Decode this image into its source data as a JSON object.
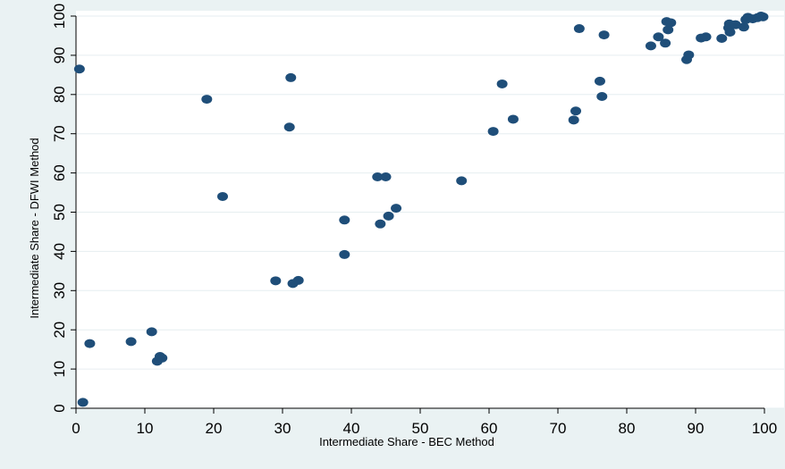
{
  "chart_data": {
    "type": "scatter",
    "title": "",
    "xlabel": "Intermediate Share - BEC Method",
    "ylabel": "Intermediate Share - DFWI Method",
    "xlim": [
      0,
      100
    ],
    "ylim": [
      0,
      100
    ],
    "xticks": [
      0,
      10,
      20,
      30,
      40,
      50,
      60,
      70,
      80,
      90,
      100
    ],
    "yticks": [
      0,
      10,
      20,
      30,
      40,
      50,
      60,
      70,
      80,
      90,
      100
    ],
    "grid": "horizontal",
    "legend": "none",
    "colors": {
      "marker": "#1f4e79",
      "grid": "#e6eef0",
      "plot_bg": "#ffffff",
      "page_bg": "#eaf2f3"
    },
    "points": [
      {
        "x": 0.5,
        "y": 86.5
      },
      {
        "x": 1.0,
        "y": 1.5
      },
      {
        "x": 2.0,
        "y": 16.5
      },
      {
        "x": 8.0,
        "y": 17.0
      },
      {
        "x": 11.0,
        "y": 19.5
      },
      {
        "x": 11.8,
        "y": 12.0
      },
      {
        "x": 12.2,
        "y": 13.2
      },
      {
        "x": 12.5,
        "y": 12.8
      },
      {
        "x": 19.0,
        "y": 78.8
      },
      {
        "x": 21.3,
        "y": 54.0
      },
      {
        "x": 29.0,
        "y": 32.5
      },
      {
        "x": 31.0,
        "y": 71.7
      },
      {
        "x": 31.2,
        "y": 84.3
      },
      {
        "x": 31.5,
        "y": 31.8
      },
      {
        "x": 32.3,
        "y": 32.6
      },
      {
        "x": 39.0,
        "y": 48.0
      },
      {
        "x": 39.0,
        "y": 39.2
      },
      {
        "x": 43.8,
        "y": 59.0
      },
      {
        "x": 44.2,
        "y": 47.0
      },
      {
        "x": 45.0,
        "y": 59.0
      },
      {
        "x": 45.4,
        "y": 49.0
      },
      {
        "x": 46.5,
        "y": 51.0
      },
      {
        "x": 56.0,
        "y": 58.0
      },
      {
        "x": 60.6,
        "y": 70.6
      },
      {
        "x": 61.9,
        "y": 82.7
      },
      {
        "x": 63.5,
        "y": 73.7
      },
      {
        "x": 72.3,
        "y": 73.5
      },
      {
        "x": 72.6,
        "y": 75.8
      },
      {
        "x": 73.1,
        "y": 96.8
      },
      {
        "x": 76.1,
        "y": 83.4
      },
      {
        "x": 76.4,
        "y": 79.5
      },
      {
        "x": 76.7,
        "y": 95.2
      },
      {
        "x": 83.5,
        "y": 92.4
      },
      {
        "x": 84.6,
        "y": 94.7
      },
      {
        "x": 85.6,
        "y": 93.1
      },
      {
        "x": 85.8,
        "y": 98.6
      },
      {
        "x": 86.0,
        "y": 96.5
      },
      {
        "x": 86.4,
        "y": 98.3
      },
      {
        "x": 88.7,
        "y": 88.9
      },
      {
        "x": 89.0,
        "y": 90.1
      },
      {
        "x": 90.8,
        "y": 94.4
      },
      {
        "x": 91.5,
        "y": 94.7
      },
      {
        "x": 93.8,
        "y": 94.3
      },
      {
        "x": 94.8,
        "y": 97.0
      },
      {
        "x": 94.9,
        "y": 98.0
      },
      {
        "x": 95.0,
        "y": 95.9
      },
      {
        "x": 95.8,
        "y": 97.8
      },
      {
        "x": 97.0,
        "y": 97.2
      },
      {
        "x": 97.3,
        "y": 99.1
      },
      {
        "x": 97.6,
        "y": 99.7
      },
      {
        "x": 98.3,
        "y": 99.3
      },
      {
        "x": 99.0,
        "y": 99.6
      },
      {
        "x": 99.5,
        "y": 100.0
      },
      {
        "x": 99.8,
        "y": 99.8
      }
    ]
  }
}
